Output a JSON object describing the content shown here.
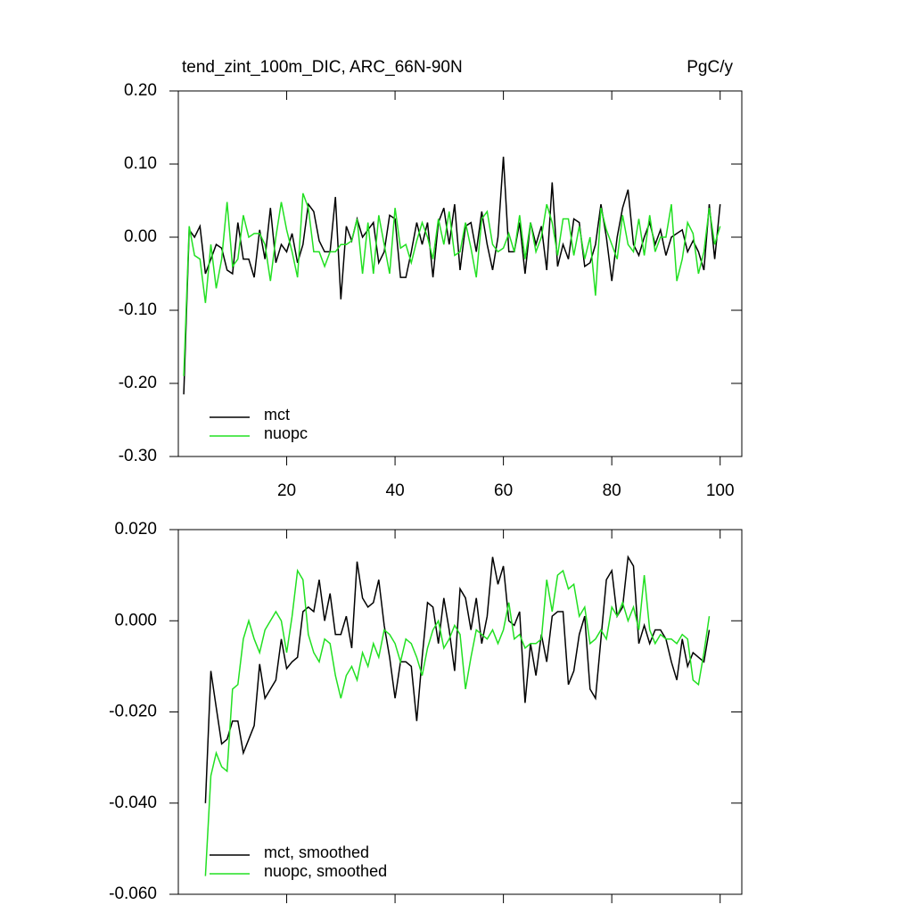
{
  "chart_data": [
    {
      "type": "line",
      "title": "tend_zint_100m_DIC, ARC_66N-90N",
      "units": "PgC/y",
      "x": [
        1,
        2,
        3,
        4,
        5,
        6,
        7,
        8,
        9,
        10,
        11,
        12,
        13,
        14,
        15,
        16,
        17,
        18,
        19,
        20,
        21,
        22,
        23,
        24,
        25,
        26,
        27,
        28,
        29,
        30,
        31,
        32,
        33,
        34,
        35,
        36,
        37,
        38,
        39,
        40,
        41,
        42,
        43,
        44,
        45,
        46,
        47,
        48,
        49,
        50,
        51,
        52,
        53,
        54,
        55,
        56,
        57,
        58,
        59,
        60,
        61,
        62,
        63,
        64,
        65,
        66,
        67,
        68,
        69,
        70,
        71,
        72,
        73,
        74,
        75,
        76,
        77,
        78,
        79,
        80,
        81,
        82,
        83,
        84,
        85,
        86,
        87,
        88,
        89,
        90,
        91,
        92,
        93,
        94,
        95,
        96,
        97,
        98,
        99,
        100
      ],
      "series": [
        {
          "name": "mct",
          "color": "#000000",
          "values": [
            -0.215,
            0.01,
            0.0,
            0.015,
            -0.05,
            -0.03,
            -0.01,
            -0.015,
            -0.045,
            -0.05,
            0.02,
            -0.03,
            -0.03,
            -0.055,
            0.01,
            -0.03,
            0.04,
            -0.035,
            -0.01,
            -0.02,
            0.005,
            -0.035,
            -0.01,
            0.045,
            0.035,
            -0.005,
            -0.02,
            -0.02,
            0.055,
            -0.085,
            0.015,
            -0.005,
            0.025,
            0.0,
            0.01,
            0.02,
            -0.035,
            -0.02,
            0.03,
            0.025,
            -0.055,
            -0.055,
            -0.02,
            0.02,
            -0.01,
            0.02,
            -0.055,
            0.02,
            0.04,
            -0.01,
            0.045,
            -0.045,
            0.015,
            0.02,
            -0.02,
            0.035,
            -0.01,
            -0.045,
            0.0,
            0.11,
            -0.02,
            -0.02,
            0.02,
            -0.05,
            0.02,
            -0.01,
            0.015,
            -0.045,
            0.075,
            -0.04,
            -0.01,
            -0.03,
            0.025,
            0.02,
            -0.04,
            -0.035,
            -0.01,
            0.045,
            0.0,
            -0.06,
            0.0,
            0.04,
            0.065,
            -0.01,
            -0.025,
            0.0,
            0.02,
            -0.01,
            0.01,
            -0.025,
            0.0,
            0.005,
            0.01,
            -0.02,
            -0.005,
            -0.02,
            -0.045,
            0.045,
            -0.03,
            0.045
          ]
        },
        {
          "name": "nuopc",
          "color": "#22e022",
          "values": [
            -0.19,
            0.015,
            -0.025,
            -0.03,
            -0.09,
            -0.01,
            -0.07,
            -0.03,
            0.048,
            -0.04,
            -0.03,
            0.03,
            0.0,
            0.005,
            0.005,
            -0.01,
            -0.06,
            0.0,
            0.048,
            0.01,
            -0.02,
            -0.055,
            0.06,
            0.04,
            -0.02,
            -0.02,
            -0.04,
            -0.02,
            -0.02,
            -0.01,
            -0.01,
            -0.005,
            0.025,
            -0.05,
            0.02,
            -0.05,
            0.03,
            -0.01,
            -0.05,
            0.04,
            -0.015,
            -0.01,
            -0.035,
            -0.005,
            0.02,
            0.0,
            -0.03,
            0.025,
            -0.01,
            0.035,
            -0.025,
            -0.02,
            0.02,
            -0.015,
            -0.055,
            0.025,
            0.035,
            -0.01,
            -0.02,
            -0.015,
            0.005,
            -0.02,
            0.03,
            -0.03,
            0.02,
            -0.02,
            0.0,
            0.045,
            0.02,
            -0.025,
            0.025,
            0.025,
            -0.025,
            0.015,
            -0.03,
            0.0,
            -0.08,
            0.04,
            0.01,
            -0.01,
            -0.03,
            0.03,
            -0.01,
            -0.02,
            0.025,
            -0.025,
            0.03,
            -0.02,
            0.0,
            0.0,
            0.045,
            -0.06,
            -0.03,
            0.02,
            0.005,
            -0.05,
            -0.02,
            0.04,
            -0.01,
            0.015
          ]
        }
      ],
      "xlim": [
        0,
        104
      ],
      "xticks": [
        20,
        40,
        60,
        80,
        100
      ],
      "ylim": [
        -0.3,
        0.2
      ],
      "yticks": [
        {
          "value": -0.3,
          "label": "-0.30"
        },
        {
          "value": -0.2,
          "label": "-0.20"
        },
        {
          "value": -0.1,
          "label": "-0.10"
        },
        {
          "value": 0,
          "label": "0.00"
        },
        {
          "value": 0.1,
          "label": "0.10"
        },
        {
          "value": 0.2,
          "label": "0.20"
        }
      ],
      "legend": "lower left"
    },
    {
      "type": "line",
      "x": [
        5,
        6,
        7,
        8,
        9,
        10,
        11,
        12,
        13,
        14,
        15,
        16,
        17,
        18,
        19,
        20,
        21,
        22,
        23,
        24,
        25,
        26,
        27,
        28,
        29,
        30,
        31,
        32,
        33,
        34,
        35,
        36,
        37,
        38,
        39,
        40,
        41,
        42,
        43,
        44,
        45,
        46,
        47,
        48,
        49,
        50,
        51,
        52,
        53,
        54,
        55,
        56,
        57,
        58,
        59,
        60,
        61,
        62,
        63,
        64,
        65,
        66,
        67,
        68,
        69,
        70,
        71,
        72,
        73,
        74,
        75,
        76,
        77,
        78,
        79,
        80,
        81,
        82,
        83,
        84,
        85,
        86,
        87,
        88,
        89,
        90,
        91,
        92,
        93,
        94,
        95,
        96,
        97,
        98
      ],
      "series": [
        {
          "name": "mct, smoothed",
          "color": "#000000",
          "values": [
            -0.04,
            -0.011,
            -0.019,
            -0.027,
            -0.026,
            -0.022,
            -0.022,
            -0.029,
            -0.026,
            -0.023,
            -0.0095,
            -0.017,
            -0.015,
            -0.013,
            -0.004,
            -0.0105,
            -0.009,
            -0.008,
            0.002,
            0.003,
            0.002,
            0.009,
            0.0,
            0.006,
            -0.003,
            -0.003,
            0.001,
            -0.006,
            0.013,
            0.005,
            0.003,
            0.004,
            0.009,
            -0.001,
            -0.008,
            -0.017,
            -0.009,
            -0.009,
            -0.01,
            -0.022,
            -0.008,
            0.004,
            0.003,
            -0.005,
            0.005,
            -0.002,
            -0.011,
            0.007,
            0.005,
            -0.002,
            0.005,
            -0.005,
            0.001,
            0.014,
            0.008,
            0.012,
            0.0,
            -0.001,
            0.002,
            -0.018,
            -0.005,
            -0.012,
            -0.003,
            -0.009,
            0.001,
            0.002,
            0.002,
            -0.014,
            -0.011,
            -0.003,
            0.001,
            -0.015,
            -0.017,
            -0.004,
            0.009,
            0.011,
            0.001,
            0.003,
            0.014,
            0.012,
            -0.005,
            -0.001,
            -0.005,
            -0.002,
            -0.002,
            -0.004,
            -0.009,
            -0.013,
            -0.004,
            -0.01,
            -0.007,
            -0.008,
            -0.009,
            -0.002
          ]
        },
        {
          "name": "nuopc, smoothed",
          "color": "#22e022",
          "values": [
            -0.056,
            -0.034,
            -0.029,
            -0.032,
            -0.033,
            -0.015,
            -0.014,
            -0.004,
            0.0,
            -0.004,
            -0.007,
            -0.002,
            0.0,
            0.002,
            0.0,
            -0.007,
            0.001,
            0.011,
            0.009,
            -0.003,
            -0.007,
            -0.009,
            -0.004,
            -0.005,
            -0.012,
            -0.017,
            -0.012,
            -0.01,
            -0.013,
            -0.007,
            -0.01,
            -0.005,
            -0.008,
            -0.002,
            -0.003,
            -0.005,
            -0.009,
            -0.004,
            -0.005,
            -0.008,
            -0.012,
            -0.006,
            -0.002,
            0.0,
            -0.006,
            -0.004,
            -0.001,
            -0.003,
            -0.015,
            -0.008,
            -0.002,
            -0.003,
            -0.004,
            -0.002,
            -0.005,
            -0.002,
            0.004,
            -0.004,
            -0.003,
            -0.006,
            -0.005,
            -0.005,
            -0.004,
            0.009,
            0.002,
            0.01,
            0.011,
            0.007,
            0.008,
            0.001,
            0.003,
            -0.005,
            -0.004,
            -0.002,
            -0.004,
            0.003,
            0.001,
            0.004,
            0.0,
            0.003,
            -0.002,
            0.01,
            -0.002,
            -0.005,
            -0.003,
            -0.004,
            -0.004,
            -0.005,
            -0.003,
            -0.004,
            -0.013,
            -0.014,
            -0.007,
            0.001
          ]
        }
      ],
      "xlim": [
        0,
        104
      ],
      "xticks": [
        20,
        40,
        60,
        80,
        100
      ],
      "ylim": [
        -0.06,
        0.02
      ],
      "yticks": [
        {
          "value": -0.06,
          "label": "-0.060"
        },
        {
          "value": -0.04,
          "label": "-0.040"
        },
        {
          "value": -0.02,
          "label": "-0.020"
        },
        {
          "value": 0,
          "label": "0.000"
        },
        {
          "value": 0.02,
          "label": "0.020"
        }
      ],
      "legend": "lower left"
    }
  ]
}
